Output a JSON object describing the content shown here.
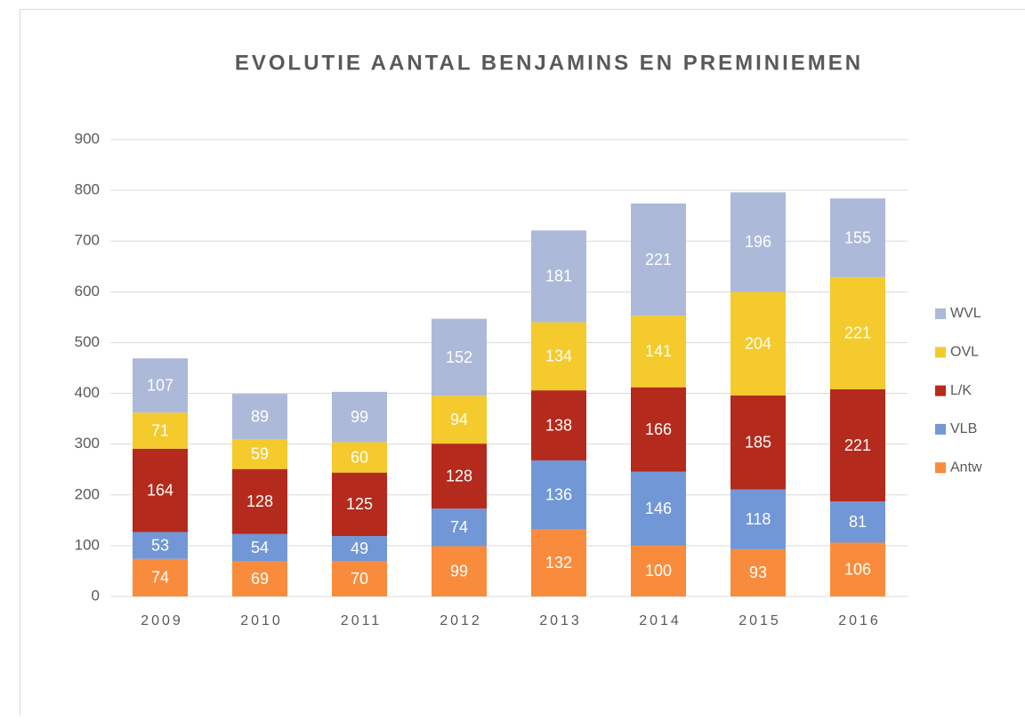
{
  "chart_data": {
    "type": "stacked_bar",
    "title": "EVOLUTIE AANTAL BENJAMINS EN PREMINIEMEN",
    "categories": [
      "2009",
      "2010",
      "2011",
      "2012",
      "2013",
      "2014",
      "2015",
      "2016"
    ],
    "series": [
      {
        "name": "Antw",
        "color": "#f98c3c",
        "values": [
          74,
          69,
          70,
          99,
          132,
          100,
          93,
          106
        ]
      },
      {
        "name": "VLB",
        "color": "#7297d6",
        "values": [
          53,
          54,
          49,
          74,
          136,
          146,
          118,
          81
        ]
      },
      {
        "name": "L/K",
        "color": "#b42a1c",
        "values": [
          164,
          128,
          125,
          128,
          138,
          166,
          185,
          221
        ]
      },
      {
        "name": "OVL",
        "color": "#f4ca2d",
        "values": [
          71,
          59,
          60,
          94,
          134,
          141,
          204,
          221
        ]
      },
      {
        "name": "WVL",
        "color": "#adb9d8",
        "values": [
          107,
          89,
          99,
          152,
          181,
          221,
          196,
          155
        ]
      }
    ],
    "ylim": [
      0,
      900
    ],
    "yticks": [
      0,
      100,
      200,
      300,
      400,
      500,
      600,
      700,
      800,
      900
    ],
    "grid": true,
    "legend": "right"
  }
}
